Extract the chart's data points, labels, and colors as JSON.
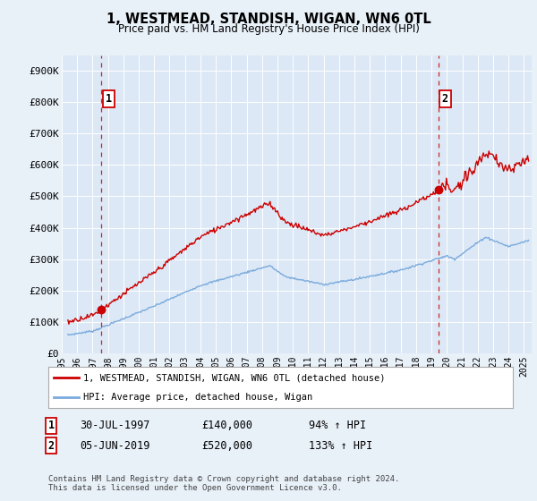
{
  "title": "1, WESTMEAD, STANDISH, WIGAN, WN6 0TL",
  "subtitle": "Price paid vs. HM Land Registry's House Price Index (HPI)",
  "ylabel_ticks": [
    "£0",
    "£100K",
    "£200K",
    "£300K",
    "£400K",
    "£500K",
    "£600K",
    "£700K",
    "£800K",
    "£900K"
  ],
  "ytick_values": [
    0,
    100000,
    200000,
    300000,
    400000,
    500000,
    600000,
    700000,
    800000,
    900000
  ],
  "ylim": [
    0,
    950000
  ],
  "xlim_start": 1995.3,
  "xlim_end": 2025.5,
  "sale1_date": 1997.58,
  "sale1_price": 140000,
  "sale2_date": 2019.43,
  "sale2_price": 520000,
  "property_line_color": "#cc0000",
  "hpi_line_color": "#7aaadd",
  "vline_color": "#cc0000",
  "legend_label1": "1, WESTMEAD, STANDISH, WIGAN, WN6 0TL (detached house)",
  "legend_label2": "HPI: Average price, detached house, Wigan",
  "table_row1": [
    "1",
    "30-JUL-1997",
    "£140,000",
    "94% ↑ HPI"
  ],
  "table_row2": [
    "2",
    "05-JUN-2019",
    "£520,000",
    "133% ↑ HPI"
  ],
  "footnote": "Contains HM Land Registry data © Crown copyright and database right 2024.\nThis data is licensed under the Open Government Licence v3.0.",
  "background_color": "#e8f0f8",
  "plot_bg_color": "#dce8f5",
  "xticks": [
    1995,
    1996,
    1997,
    1998,
    1999,
    2000,
    2001,
    2002,
    2003,
    2004,
    2005,
    2006,
    2007,
    2008,
    2009,
    2010,
    2011,
    2012,
    2013,
    2014,
    2015,
    2016,
    2017,
    2018,
    2019,
    2020,
    2021,
    2022,
    2023,
    2024,
    2025
  ]
}
